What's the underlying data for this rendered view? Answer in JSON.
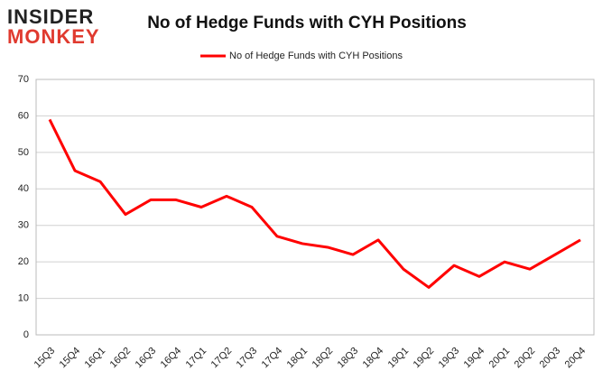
{
  "logo": {
    "line1": "INSIDER",
    "line2": "MONKEY"
  },
  "chart_data": {
    "type": "line",
    "title": "No of Hedge Funds with CYH Positions",
    "categories": [
      "15Q3",
      "15Q4",
      "16Q1",
      "16Q2",
      "16Q3",
      "16Q4",
      "17Q1",
      "17Q2",
      "17Q3",
      "17Q4",
      "18Q1",
      "18Q2",
      "18Q3",
      "18Q4",
      "19Q1",
      "19Q2",
      "19Q3",
      "19Q4",
      "20Q1",
      "20Q2",
      "20Q3",
      "20Q4"
    ],
    "series": [
      {
        "name": "No of Hedge Funds with CYH Positions",
        "color": "#ff0000",
        "values": [
          59,
          45,
          42,
          33,
          37,
          37,
          35,
          38,
          35,
          27,
          25,
          24,
          22,
          26,
          18,
          13,
          19,
          16,
          20,
          18,
          22,
          26
        ]
      }
    ],
    "ylim": [
      0,
      70
    ],
    "yticks": [
      0,
      10,
      20,
      30,
      40,
      50,
      60,
      70
    ],
    "grid": true,
    "legend": "top"
  }
}
